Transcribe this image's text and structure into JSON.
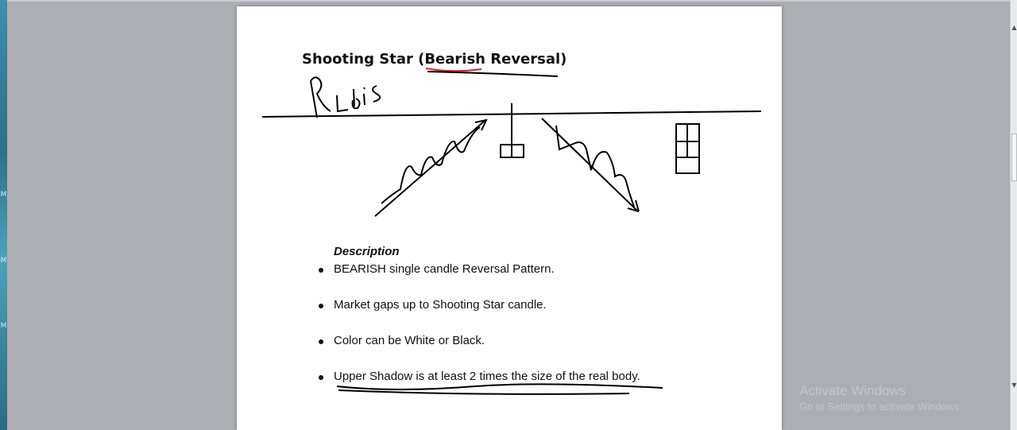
{
  "document": {
    "title": "Shooting Star (Bearish Reversal)",
    "handwritten_note": "Rlbis",
    "description_heading": "Description",
    "bullets": [
      "BEARISH single candle Reversal Pattern.",
      "Market gaps up to Shooting Star candle.",
      "Color can be White or Black.",
      "Upper Shadow is at least 2 times the size of the real body."
    ]
  },
  "watermark": {
    "title": "Activate Windows",
    "subtitle": "Go to Settings to activate Windows."
  },
  "colors": {
    "page": "#ffffff",
    "workspace": "#abaeb3",
    "ink": "#000000",
    "spellcheck_underline": "#e02020"
  },
  "icons": {
    "scroll_up": "▲",
    "scroll_down": "▼"
  }
}
